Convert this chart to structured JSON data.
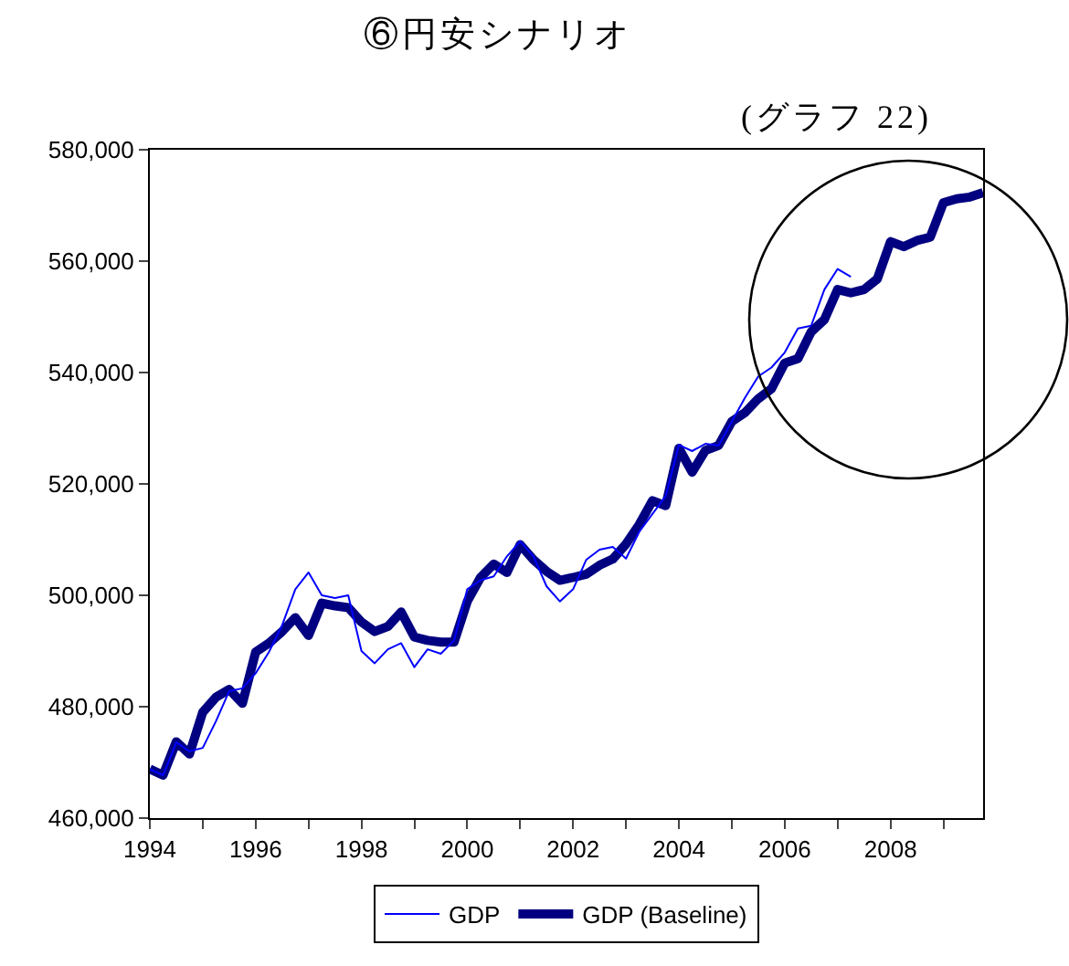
{
  "chart_data": {
    "type": "line",
    "title": "⑥円安シナリオ",
    "subtitle": "(グラフ 22)",
    "x": [
      1994,
      1994.25,
      1994.5,
      1994.75,
      1995,
      1995.25,
      1995.5,
      1995.75,
      1996,
      1996.25,
      1996.5,
      1996.75,
      1997,
      1997.25,
      1997.5,
      1997.75,
      1998,
      1998.25,
      1998.5,
      1998.75,
      1999,
      1999.25,
      1999.5,
      1999.75,
      2000,
      2000.25,
      2000.5,
      2000.75,
      2001,
      2001.25,
      2001.5,
      2001.75,
      2002,
      2002.25,
      2002.5,
      2002.75,
      2003,
      2003.25,
      2003.5,
      2003.75,
      2004,
      2004.25,
      2004.5,
      2004.75,
      2005,
      2005.25,
      2005.5,
      2005.75,
      2006,
      2006.25,
      2006.5,
      2006.75,
      2007,
      2007.25,
      2007.5,
      2007.75,
      2008,
      2008.25,
      2008.5,
      2008.75,
      2009,
      2009.25,
      2009.5,
      2009.75
    ],
    "series": [
      {
        "name": "GDP",
        "color": "#0000ff",
        "values": [
          468800,
          467700,
          473600,
          472000,
          472600,
          477400,
          482800,
          483300,
          486000,
          489800,
          494600,
          501100,
          504100,
          500000,
          499500,
          500000,
          490000,
          487800,
          490300,
          491400,
          487100,
          490300,
          489500,
          491900,
          501100,
          502700,
          503400,
          507000,
          509700,
          507000,
          501600,
          498900,
          501100,
          506400,
          508200,
          508700,
          506600,
          511400,
          514600,
          517800,
          527000,
          525900,
          527200,
          526900,
          531200,
          535500,
          539300,
          540900,
          543600,
          547900,
          548400,
          554900,
          558600,
          557200,
          null,
          null,
          null,
          null,
          null,
          null,
          null,
          null,
          null,
          null
        ]
      },
      {
        "name": "GDP (Baseline)",
        "color": "#000080",
        "values": [
          468800,
          467700,
          473700,
          471500,
          479000,
          481700,
          483100,
          480600,
          489800,
          491400,
          493500,
          496000,
          492800,
          498600,
          498100,
          497800,
          495200,
          493500,
          494400,
          497000,
          492500,
          491900,
          491600,
          491600,
          498900,
          503200,
          505600,
          504100,
          509100,
          506400,
          504300,
          502700,
          503200,
          503800,
          505400,
          506500,
          509200,
          512700,
          517000,
          516100,
          526400,
          522100,
          526000,
          526900,
          531200,
          532800,
          535300,
          537100,
          541700,
          542500,
          547300,
          549500,
          554900,
          554300,
          554900,
          556800,
          563500,
          562600,
          563700,
          564300,
          570500,
          571200,
          571500,
          572300
        ]
      }
    ],
    "xlim": [
      1994,
      2009.75
    ],
    "xticks": [
      1994,
      {
        "value": 1995,
        "label": null
      },
      1996,
      {
        "value": 1997,
        "label": null
      },
      1998,
      {
        "value": 1999,
        "label": null
      },
      2000,
      {
        "value": 2001,
        "label": null
      },
      2002,
      {
        "value": 2003,
        "label": null
      },
      2004,
      {
        "value": 2005,
        "label": null
      },
      2006,
      {
        "value": 2007,
        "label": null
      },
      2008,
      {
        "value": 2009,
        "label": null
      }
    ],
    "ylim": [
      460000,
      580000
    ],
    "yticks": [
      {
        "value": 460000,
        "label": "460,000"
      },
      {
        "value": 480000,
        "label": "480,000"
      },
      {
        "value": 500000,
        "label": "500,000"
      },
      {
        "value": 520000,
        "label": "520,000"
      },
      {
        "value": 540000,
        "label": "540,000"
      },
      {
        "value": 560000,
        "label": "560,000"
      },
      {
        "value": 580000,
        "label": "580,000"
      }
    ],
    "grid": false,
    "legend": "bottom",
    "marker": "none",
    "line_style": "solid"
  }
}
